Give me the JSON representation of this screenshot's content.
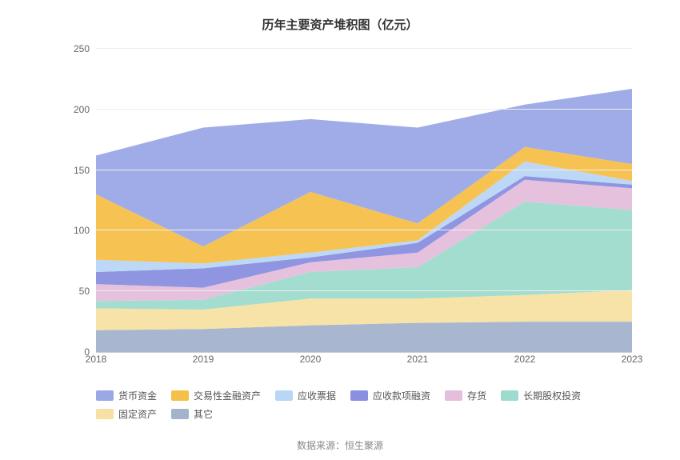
{
  "chart": {
    "type": "area-stacked",
    "title": "历年主要资产堆积图（亿元）",
    "title_fontsize": 15,
    "title_color": "#333333",
    "background_color": "#ffffff",
    "grid_color": "#eeeeee",
    "axis_line_color": "#cccccc",
    "tick_color": "#666666",
    "tick_fontsize": 12,
    "ylim": [
      0,
      250
    ],
    "ytick_step": 50,
    "yticks": [
      0,
      50,
      100,
      150,
      200,
      250
    ],
    "categories": [
      "2018",
      "2019",
      "2020",
      "2021",
      "2022",
      "2023"
    ],
    "series": [
      {
        "name": "其它",
        "color": "#a3b3cc",
        "values": [
          18,
          19,
          22,
          24,
          25,
          25
        ]
      },
      {
        "name": "固定资产",
        "color": "#f7e0a3",
        "values": [
          18,
          16,
          22,
          20,
          22,
          26
        ]
      },
      {
        "name": "长期股权投资",
        "color": "#9edbce",
        "values": [
          6,
          8,
          22,
          26,
          77,
          66
        ]
      },
      {
        "name": "存货",
        "color": "#e4bedb",
        "values": [
          14,
          10,
          8,
          12,
          18,
          18
        ]
      },
      {
        "name": "应收款项融资",
        "color": "#8a8fe0",
        "values": [
          10,
          16,
          4,
          8,
          3,
          3
        ]
      },
      {
        "name": "应收票据",
        "color": "#b8d6f5",
        "values": [
          10,
          4,
          4,
          2,
          12,
          3
        ]
      },
      {
        "name": "交易性金融资产",
        "color": "#f5c04a",
        "values": [
          54,
          14,
          50,
          14,
          12,
          14
        ]
      },
      {
        "name": "货币资金",
        "color": "#9aa8e6",
        "values": [
          32,
          98,
          60,
          79,
          35,
          62
        ]
      }
    ],
    "legend_order": [
      "货币资金",
      "交易性金融资产",
      "应收票据",
      "应收款项融资",
      "存货",
      "长期股权投资",
      "固定资产",
      "其它"
    ],
    "legend_fontsize": 12,
    "legend_text_color": "#555555",
    "area_opacity": 0.95,
    "source_label": "数据来源：恒生聚源",
    "source_fontsize": 12,
    "source_color": "#888888"
  }
}
